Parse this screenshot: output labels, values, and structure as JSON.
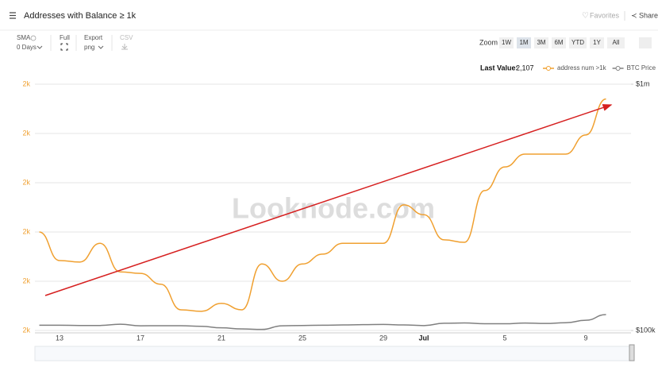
{
  "ui": {
    "title": "Addresses with Balance ≥ 1k",
    "favorites": "Favorites",
    "share": "Share",
    "sma_label": "SMA",
    "sma_value": "0 Days",
    "full": "Full",
    "export": "Export",
    "export_value": "png",
    "csv": "CSV",
    "zoom_label": "Zoom",
    "zoom_options": [
      "1W",
      "1M",
      "3M",
      "6M",
      "YTD",
      "1Y",
      "All"
    ],
    "zoom_selected": "1M",
    "last_value_label": "Last Value:",
    "last_value": 2107,
    "last_value_label_printed": "2,107",
    "watermark": "Looknode.com"
  },
  "chart_data": {
    "type": "line",
    "categories": [
      null,
      "13",
      null,
      null,
      null,
      "17",
      null,
      null,
      null,
      "21",
      null,
      null,
      null,
      "25",
      null,
      null,
      null,
      "29",
      null,
      "Jul",
      null,
      null,
      null,
      "5",
      null,
      null,
      null,
      "9",
      null
    ],
    "series": [
      {
        "name": "address num >1k",
        "color": "#f0a030",
        "values": [
          2080,
          2074.2,
          2073.9,
          2077.7,
          2071.9,
          2071.6,
          2069.4,
          2064.2,
          2063.9,
          2065.5,
          2064.2,
          2073.5,
          2070,
          2073.5,
          2075.5,
          2077.7,
          2077.7,
          2077.7,
          2085.5,
          2083.5,
          2078.4,
          2077.9,
          2088.4,
          2093.2,
          2095.8,
          2095.8,
          2095.8,
          2099.7,
          2107
        ]
      },
      {
        "name": "BTC Price",
        "color": "#808080",
        "axis": "y2",
        "values": [
          105000,
          105000,
          104800,
          104800,
          106000,
          104500,
          104600,
          104600,
          104000,
          102500,
          101500,
          101000,
          104500,
          104800,
          105000,
          105300,
          105600,
          105800,
          105300,
          104700,
          107000,
          107300,
          106500,
          106500,
          107200,
          106800,
          107500,
          110000,
          116000
        ]
      }
    ],
    "ylim": [
      2060,
      2110
    ],
    "yticks": [
      {
        "value": 2060,
        "label": "2k"
      },
      {
        "value": 2070,
        "label": "2k"
      },
      {
        "value": 2080,
        "label": "2k"
      },
      {
        "value": 2090,
        "label": "2k"
      },
      {
        "value": 2100,
        "label": "2k"
      },
      {
        "value": 2110,
        "label": "2k"
      }
    ],
    "y2lim": [
      100000,
      1000000
    ],
    "y2log": true,
    "y2ticks": [
      {
        "value": 100000,
        "label": "$100k"
      },
      {
        "value": 1000000,
        "label": "$1m"
      }
    ],
    "grid": true
  }
}
